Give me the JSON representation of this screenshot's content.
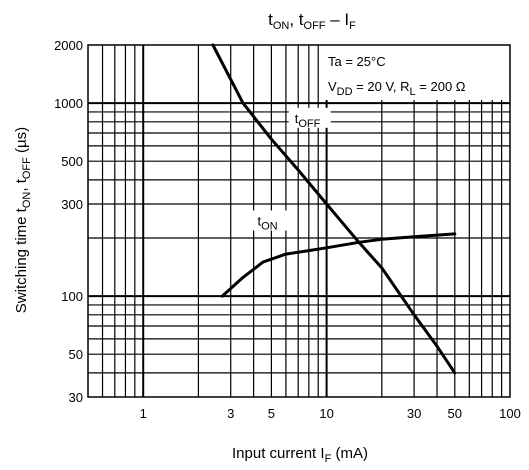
{
  "chart_data": {
    "type": "line",
    "title": {
      "main_a": "t",
      "sub_a": "ON",
      "sep": ", t",
      "sub_b": "OFF",
      "dash": " – I",
      "sub_c": "F"
    },
    "xlabel": {
      "main": "Input current   I",
      "sub": "F",
      "unit": "   (mA)"
    },
    "ylabel": {
      "main": "Switching time   t",
      "sub_a": "ON",
      "sep": ", t",
      "sub_b": "OFF",
      "unit": "   (µs)"
    },
    "x_scale": "log",
    "y_scale": "log",
    "xlim": [
      0.5,
      100
    ],
    "ylim": [
      30,
      2000
    ],
    "x_ticks": [
      {
        "value": 1,
        "label": "1"
      },
      {
        "value": 3,
        "label": "3"
      },
      {
        "value": 5,
        "label": "5"
      },
      {
        "value": 10,
        "label": "10"
      },
      {
        "value": 30,
        "label": "30"
      },
      {
        "value": 50,
        "label": "50"
      },
      {
        "value": 100,
        "label": "100"
      }
    ],
    "y_ticks": [
      {
        "value": 30,
        "label": "30"
      },
      {
        "value": 50,
        "label": "50"
      },
      {
        "value": 100,
        "label": "100"
      },
      {
        "value": 300,
        "label": "300"
      },
      {
        "value": 500,
        "label": "500"
      },
      {
        "value": 1000,
        "label": "1000"
      },
      {
        "value": 2000,
        "label": "2000"
      }
    ],
    "grid": true,
    "conditions": {
      "line1": "Ta = 25°C",
      "line2": {
        "a": "V",
        "sub_a": "DD",
        "b": " = 20 V, R",
        "sub_b": "L",
        "c": " = 200 Ω"
      }
    },
    "series": [
      {
        "label": {
          "main": "t",
          "sub": "OFF"
        },
        "label_at": [
          6.7,
          800
        ],
        "x": [
          2.4,
          3.5,
          5,
          7,
          10,
          15,
          20,
          30,
          40,
          50
        ],
        "y": [
          2000,
          1000,
          650,
          450,
          300,
          190,
          140,
          80,
          55,
          40
        ]
      },
      {
        "label": {
          "main": "t",
          "sub": "ON"
        },
        "label_at": [
          4.2,
          235
        ],
        "x": [
          2.7,
          3.5,
          4.5,
          6,
          8,
          10,
          15,
          20,
          30,
          50
        ],
        "y": [
          100,
          125,
          150,
          165,
          172,
          178,
          190,
          197,
          203,
          210
        ]
      }
    ]
  }
}
